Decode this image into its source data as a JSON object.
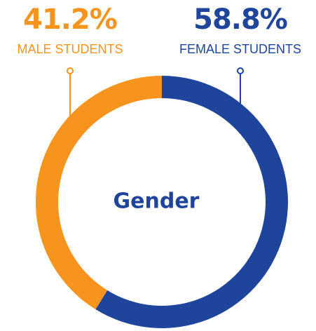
{
  "chart_data": {
    "type": "pie",
    "hole": true,
    "categories": [
      "MALE STUDENTS",
      "FEMALE STUDENTS"
    ],
    "values": [
      41.2,
      58.8
    ],
    "value_labels": [
      "41.2%",
      "58.8%"
    ],
    "colors": [
      "#f7941d",
      "#1e449b"
    ],
    "center_text": "Gender"
  }
}
